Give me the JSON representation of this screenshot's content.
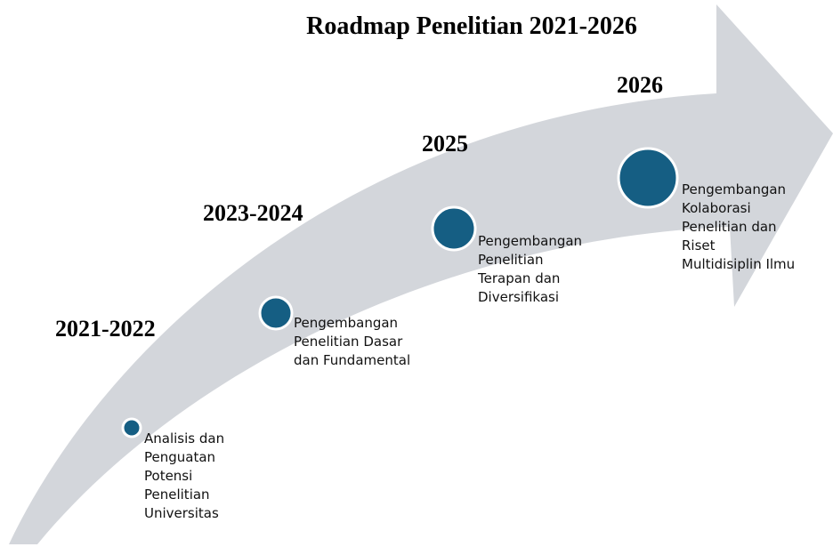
{
  "title": "Roadmap Penelitian 2021-2026",
  "stages": [
    {
      "year": "2021-2022",
      "lines": [
        "Analisis  dan",
        "Penguatan",
        "Potensi",
        "Penelitian",
        "Universitas"
      ]
    },
    {
      "year": "2023-2024",
      "lines": [
        "Pengembangan",
        "Penelitian Dasar",
        "dan Fundamental"
      ]
    },
    {
      "year": "2025",
      "lines": [
        "Pengembangan",
        "Penelitian",
        "Terapan dan",
        "Diversifikasi"
      ]
    },
    {
      "year": "2026",
      "lines": [
        "Pengembangan",
        "Kolaborasi",
        "Penelitian dan",
        "Riset",
        "Multidisiplin Ilmu"
      ]
    }
  ]
}
